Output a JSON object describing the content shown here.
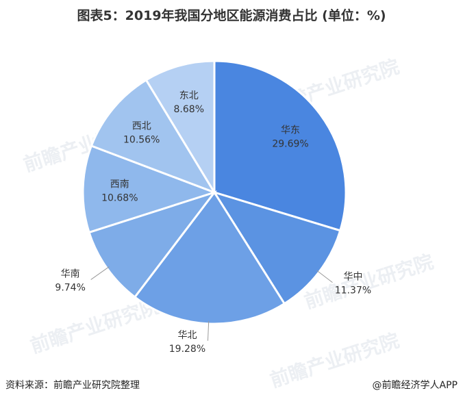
{
  "title": "图表5：2019年我国分地区能源消费占比 (单位：%)",
  "source": "资料来源：前瞻产业研究院整理",
  "brand": "@前瞻经济学人APP",
  "watermark": "前瞻产业研究院",
  "chart_data": {
    "type": "pie",
    "unit": "%",
    "slices": [
      {
        "name": "华东",
        "value": 29.69,
        "label": "29.69%",
        "color": "#4a86e0"
      },
      {
        "name": "华中",
        "value": 11.37,
        "label": "11.37%",
        "color": "#5b93e2"
      },
      {
        "name": "华北",
        "value": 19.28,
        "label": "19.28%",
        "color": "#6da0e6"
      },
      {
        "name": "华南",
        "value": 9.74,
        "label": "9.74%",
        "color": "#7eace8"
      },
      {
        "name": "西南",
        "value": 10.68,
        "label": "10.68%",
        "color": "#8fb8ec"
      },
      {
        "name": "西北",
        "value": 10.56,
        "label": "10.56%",
        "color": "#a1c4ef"
      },
      {
        "name": "东北",
        "value": 8.68,
        "label": "8.68%",
        "color": "#b5d0f3"
      }
    ]
  }
}
